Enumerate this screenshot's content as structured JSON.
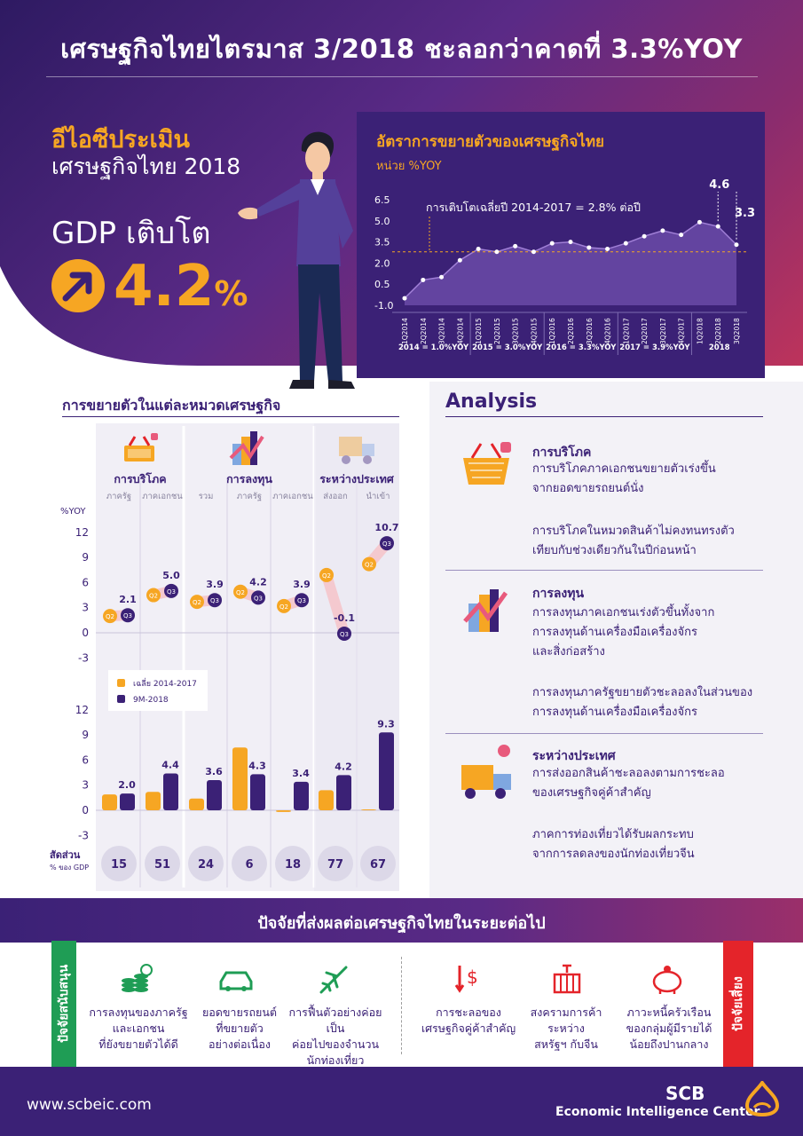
{
  "header": {
    "title": "เศรษฐกิจไทยไตรมาส 3/2018 ชะลอกว่าคาดที่ 3.3%YOY",
    "eic_label": "อีไอซีประเมิน",
    "eic_sub": "เศรษฐกิจไทย 2018",
    "gdp_label": "GDP เติบโต",
    "gdp_value": "4.2",
    "gdp_unit": "%"
  },
  "gdp_panel": {
    "title": "อัตราการขยายตัวของเศรษฐกิจไทย",
    "unit": "หน่วย %YOY",
    "note": "การเติบโตเฉลี่ยปี 2014-2017 = 2.8% ต่อปี"
  },
  "chart_data": [
    {
      "type": "area",
      "x": [
        "1Q2014",
        "2Q2014",
        "3Q2014",
        "4Q2014",
        "1Q2015",
        "2Q2015",
        "3Q2015",
        "4Q2015",
        "1Q2016",
        "2Q2016",
        "3Q2016",
        "4Q2016",
        "1Q2017",
        "2Q2017",
        "3Q2017",
        "4Q2017",
        "1Q2018",
        "2Q2018",
        "3Q2018"
      ],
      "values": [
        -0.5,
        0.8,
        1.0,
        2.2,
        3.0,
        2.8,
        3.2,
        2.8,
        3.4,
        3.5,
        3.1,
        3.0,
        3.4,
        3.9,
        4.3,
        4.0,
        4.9,
        4.6,
        3.3
      ],
      "labeled_values": [
        {
          "x": "2Q2018",
          "label": "4.6"
        },
        {
          "x": "3Q2018",
          "label": "3.3"
        }
      ],
      "yticks": [
        "6.5",
        "5.0",
        "3.5",
        "2.0",
        "0.5",
        "-1.0"
      ],
      "ylim": [
        -1.0,
        6.5
      ],
      "reference_line": 2.8,
      "year_groups": [
        "2014 = 1.0%YOY",
        "2015 = 3.0%YOY",
        "2016 = 3.3%YOY",
        "2017 = 3.9%YOY",
        "2018"
      ],
      "colors": {
        "area": "#6b4aa8",
        "line": "#a07fd6",
        "points": "#ffffff",
        "reference": "#f6a623"
      }
    },
    {
      "type": "scatter",
      "groups": [
        {
          "name": "การบริโภค",
          "subs": [
            "ภาครัฐ",
            "ภาคเอกชน"
          ]
        },
        {
          "name": "การลงทุน",
          "subs": [
            "รวม",
            "ภาครัฐ",
            "ภาคเอกชน"
          ]
        },
        {
          "name": "ระหว่างประเทศ",
          "subs": [
            "ส่งออก",
            "นำเข้า"
          ]
        }
      ],
      "categories": [
        "ภาครัฐ",
        "ภาคเอกชน",
        "รวม",
        "ภาครัฐ",
        "ภาคเอกชน",
        "ส่งออก",
        "นำเข้า"
      ],
      "ylabel": "%YOY",
      "yticks": [
        "12",
        "9",
        "6",
        "3",
        "0",
        "-3"
      ],
      "ylim": [
        -3,
        12
      ],
      "series": [
        {
          "name": "Q2",
          "values": [
            2.0,
            4.5,
            3.7,
            4.9,
            3.2,
            6.9,
            8.2
          ]
        },
        {
          "name": "Q3",
          "values": [
            2.1,
            5.0,
            3.9,
            4.2,
            3.9,
            -0.1,
            10.7
          ]
        }
      ],
      "labels": [
        "2.1",
        "5.0",
        "3.9",
        "4.2",
        "3.9",
        "-0.1",
        "10.7"
      ],
      "colors": {
        "Q2": "#f6a623",
        "Q3": "#3b2176",
        "connector": "#f4c9cf"
      }
    },
    {
      "type": "bar",
      "categories": [
        "ภาครัฐ",
        "ภาคเอกชน",
        "รวม",
        "ภาครัฐ",
        "ภาคเอกชน",
        "ส่งออก",
        "นำเข้า"
      ],
      "yticks": [
        "12",
        "9",
        "6",
        "3",
        "0",
        "-3"
      ],
      "ylim": [
        -3,
        12
      ],
      "series": [
        {
          "name": "เฉลี่ย 2014-2017",
          "values": [
            1.9,
            2.2,
            1.4,
            7.5,
            -0.2,
            2.4,
            0.1
          ]
        },
        {
          "name": "9M-2018",
          "values": [
            2.0,
            4.4,
            3.6,
            4.3,
            3.4,
            4.2,
            9.3
          ]
        }
      ],
      "labels": [
        "2.0",
        "4.4",
        "3.6",
        "4.3",
        "3.4",
        "4.2",
        "9.3"
      ],
      "colors": {
        "avg": "#f6a623",
        "ytd": "#3b2176"
      }
    }
  ],
  "sector": {
    "title": "การขยายตัวในแต่ละหมวดเศรษฐกิจ",
    "share_label": "สัดส่วน",
    "share_sub": "% ของ GDP",
    "shares": [
      "15",
      "51",
      "24",
      "6",
      "18",
      "77",
      "67"
    ],
    "q2_tag": "Q2",
    "q3_tag": "Q3"
  },
  "analysis": {
    "title": "Analysis",
    "consumption_head": "การบริโภค",
    "consumption_t1": "การบริโภคภาคเอกชนขยายตัวเร่งขึ้น",
    "consumption_t2": "จากยอดขายรถยนต์นั่ง",
    "consumption_t3": "การบริโภคในหมวดสินค้าไม่คงทนทรงตัว",
    "consumption_t4": "เทียบกับช่วงเดียวกันในปีก่อนหน้า",
    "invest_head": "การลงทุน",
    "invest_t1": "การลงทุนภาคเอกชนเร่งตัวขึ้นทั้งจาก",
    "invest_t2": "การลงทุนด้านเครื่องมือเครื่องจักร",
    "invest_t3": "และสิ่งก่อสร้าง",
    "invest_t4": "การลงทุนภาครัฐขยายตัวชะลอลงในส่วนของ",
    "invest_t5": "การลงทุนด้านเครื่องมือเครื่องจักร",
    "intl_head": "ระหว่างประเทศ",
    "intl_t1": "การส่งออกสินค้าชะลอลงตามการชะลอ",
    "intl_t2": "ของเศรษฐกิจคู่ค้าสำคัญ",
    "intl_t3": "ภาคการท่องเที่ยวได้รับผลกระทบ",
    "intl_t4": "จากการลดลงของนักท่องเที่ยวจีน"
  },
  "factors": {
    "title": "ปัจจัยที่ส่งผลต่อเศรษฐกิจไทยในระยะต่อไป",
    "support_label": "ปัจจัยสนับสนุน",
    "risk_label": "ปัจจัยเสี่ยง",
    "s1_l1": "การลงทุนของภาครัฐ",
    "s1_l2": "และเอกชน",
    "s1_l3": "ที่ยังขยายตัวได้ดี",
    "s2_l1": "ยอดขายรถยนต์",
    "s2_l2": "ที่ขยายตัว",
    "s2_l3": "อย่างต่อเนื่อง",
    "s3_l1": "การฟื้นตัวอย่างค่อยเป็น",
    "s3_l2": "ค่อยไปของจำนวน",
    "s3_l3": "นักท่องเที่ยว",
    "r1_l1": "การชะลอของ",
    "r1_l2": "เศรษฐกิจคู่ค้าสำคัญ",
    "r2_l1": "สงครามการค้า",
    "r2_l2": "ระหว่าง",
    "r2_l3": "สหรัฐฯ กับจีน",
    "r3_l1": "ภาวะหนี้ครัวเรือน",
    "r3_l2": "ของกลุ่มผู้มีรายได้",
    "r3_l3": "น้อยถึงปานกลาง"
  },
  "footer": {
    "url": "www.scbeic.com",
    "brand": "SCB",
    "center": "Economic Intelligence Center"
  }
}
